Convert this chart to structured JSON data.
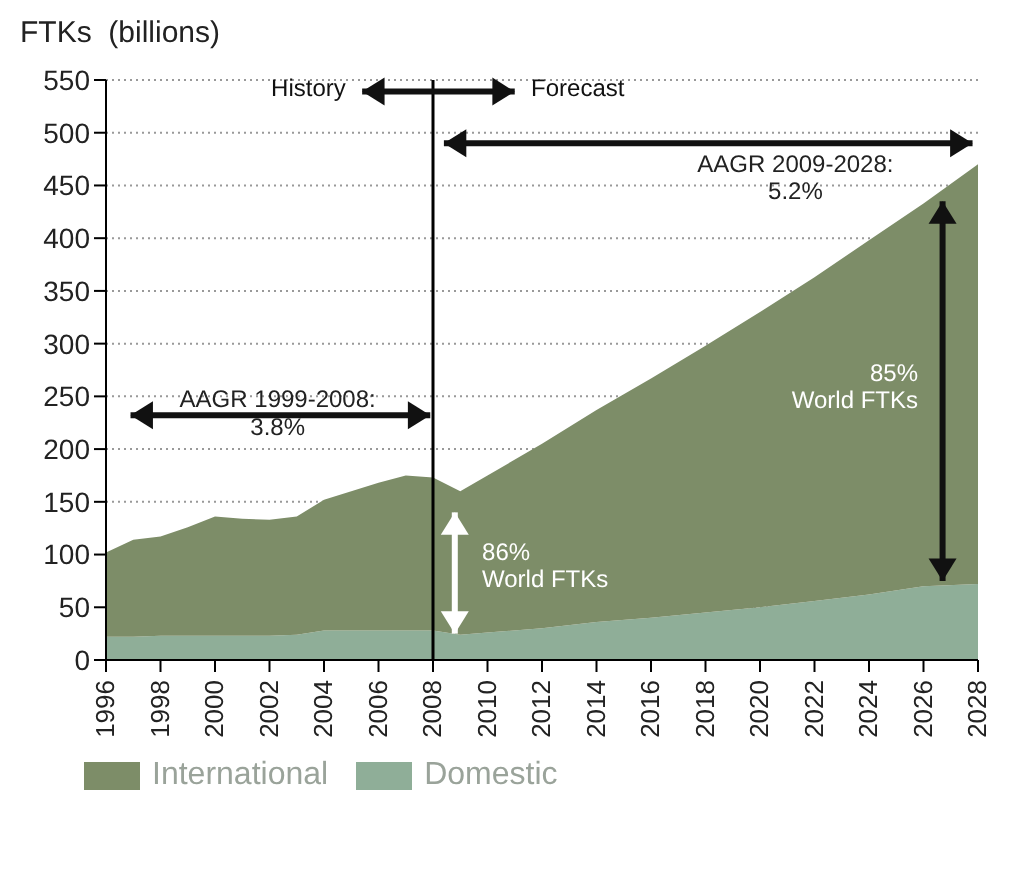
{
  "chart_data": {
    "type": "area",
    "ylabel": "FTKs  (billions)",
    "stacked": true,
    "xlim": [
      1996,
      2028
    ],
    "xticks": [
      1996,
      1998,
      2000,
      2002,
      2004,
      2006,
      2008,
      2010,
      2012,
      2014,
      2016,
      2018,
      2020,
      2022,
      2024,
      2026,
      2028
    ],
    "ylim": [
      0,
      550
    ],
    "yticks": [
      0,
      50,
      100,
      150,
      200,
      250,
      300,
      350,
      400,
      450,
      500,
      550
    ],
    "grid": "y",
    "legend": "bottom",
    "series": [
      {
        "name": "Domestic",
        "color": "#8fae98",
        "x": [
          1996,
          1997,
          1998,
          1999,
          2000,
          2001,
          2002,
          2003,
          2004,
          2005,
          2006,
          2007,
          2008,
          2009,
          2010,
          2012,
          2014,
          2016,
          2018,
          2020,
          2022,
          2024,
          2026,
          2028
        ],
        "values": [
          22,
          22,
          23,
          23,
          23,
          23,
          23,
          24,
          28,
          28,
          28,
          28,
          28,
          24,
          26,
          30,
          36,
          40,
          45,
          50,
          56,
          62,
          70,
          72
        ]
      },
      {
        "name": "International",
        "color": "#7d8d68",
        "x": [
          1996,
          1997,
          1998,
          1999,
          2000,
          2001,
          2002,
          2003,
          2004,
          2005,
          2006,
          2007,
          2008,
          2009,
          2010,
          2012,
          2014,
          2016,
          2018,
          2020,
          2022,
          2024,
          2026,
          2028
        ],
        "values": [
          80,
          92,
          94,
          103,
          113,
          111,
          110,
          112,
          124,
          132,
          140,
          147,
          145,
          136,
          149,
          175,
          201,
          227,
          253,
          280,
          307,
          336,
          363,
          398
        ]
      }
    ],
    "ref_lines": [
      {
        "axis": "x",
        "value": 2008,
        "color": "#000000"
      }
    ],
    "annotations": [
      "History",
      "Forecast",
      "AAGR 1999-2008:\n3.8%",
      "AAGR 2009-2028:\n5.2%",
      "86%\nWorld FTKs",
      "85%\nWorld FTKs"
    ]
  }
}
